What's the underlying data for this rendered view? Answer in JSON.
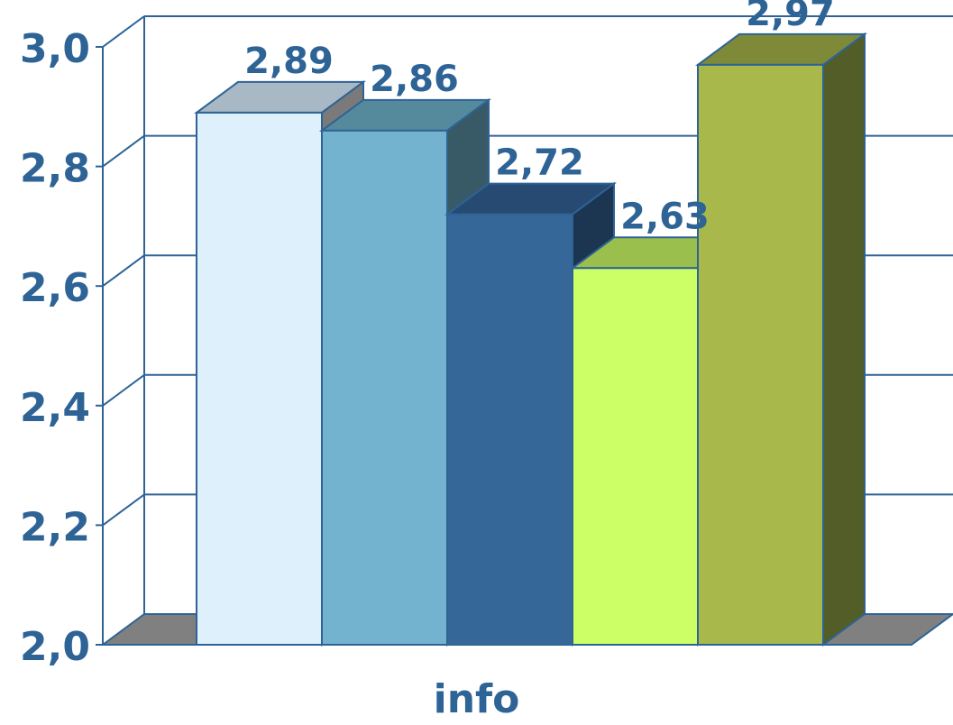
{
  "chart_data": {
    "type": "bar",
    "xlabel": "info",
    "ylim": [
      2.0,
      3.0
    ],
    "yticks": [
      "2,0",
      "2,2",
      "2,4",
      "2,6",
      "2,8",
      "3,0"
    ],
    "series": [
      {
        "value": 2.89,
        "label": "2,89",
        "colors": {
          "front": "#DDF0FC",
          "top": "#A8B8C4",
          "side": "#7A7A7A"
        }
      },
      {
        "value": 2.86,
        "label": "2,86",
        "colors": {
          "front": "#74B3CF",
          "top": "#548A9C",
          "side": "#385A66"
        }
      },
      {
        "value": 2.72,
        "label": "2,72",
        "colors": {
          "front": "#356898",
          "top": "#264A72",
          "side": "#1C3550"
        }
      },
      {
        "value": 2.63,
        "label": "2,63",
        "colors": {
          "front": "#CCFF66",
          "top": "#9BBF4D",
          "side": "#6C8636"
        }
      },
      {
        "value": 2.97,
        "label": "2,97",
        "colors": {
          "front": "#A8B84A",
          "top": "#7E8A38",
          "side": "#525D27"
        }
      }
    ],
    "grid": true,
    "style": {
      "axis_color": "#2E6396",
      "label_color": "#2E6396",
      "floor_color": "#808080"
    }
  }
}
